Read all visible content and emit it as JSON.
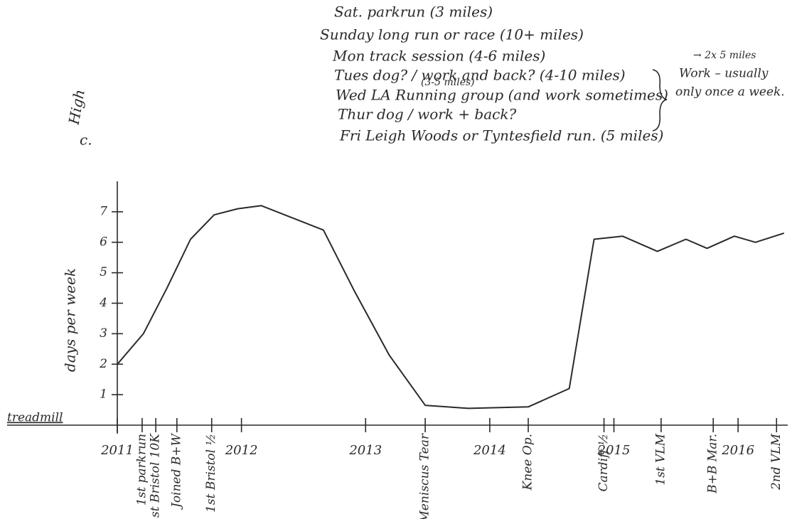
{
  "chart_data": {
    "type": "line",
    "y_label": "days per week",
    "y_annotation": [
      "High",
      "c."
    ],
    "baseline_label": "treadmill",
    "color": "#2a2a2a",
    "x": [
      2011.0,
      2011.21,
      2011.4,
      2011.59,
      2011.78,
      2011.97,
      2012.16,
      2012.41,
      2012.66,
      2012.91,
      2013.19,
      2013.48,
      2013.83,
      2014.31,
      2014.64,
      2014.84,
      2015.07,
      2015.35,
      2015.58,
      2015.75,
      2015.97,
      2016.14,
      2016.37
    ],
    "values": [
      2.0,
      3.0,
      4.5,
      6.1,
      6.9,
      7.1,
      7.2,
      6.8,
      6.4,
      4.4,
      2.3,
      0.65,
      0.55,
      0.6,
      1.2,
      6.1,
      6.2,
      5.7,
      6.1,
      5.8,
      6.2,
      6.0,
      6.3
    ],
    "xlim": [
      2011,
      2016.4
    ],
    "xticks": [
      2011,
      2012,
      2013,
      2014,
      2015,
      2016
    ],
    "ylim": [
      0,
      8
    ],
    "yticks": [
      1,
      2,
      3,
      4,
      5,
      6,
      7
    ],
    "events": [
      {
        "x": 2011.2,
        "label": "1st parkrun"
      },
      {
        "x": 2011.31,
        "label": "1st Bristol 10K"
      },
      {
        "x": 2011.48,
        "label": "Joined B+W"
      },
      {
        "x": 2011.76,
        "label": "1st Bristol ½"
      },
      {
        "x": 2013.48,
        "label": "Meniscus Tear"
      },
      {
        "x": 2014.31,
        "label": "Knee Op."
      },
      {
        "x": 2014.92,
        "label": "Cardiff ½"
      },
      {
        "x": 2015.38,
        "label": "1st VLM"
      },
      {
        "x": 2015.8,
        "label": "B+B Mar."
      },
      {
        "x": 2016.31,
        "label": "2nd VLM"
      }
    ]
  },
  "notes": {
    "schedule": [
      "Sat. parkrun (3 miles)",
      "Sunday long run or race (10+ miles)",
      "Mon track session (4-6 miles)",
      "Tues dog? / work and back? (4-10 miles)",
      "Wed LA Running group (and work sometimes)",
      "Thur dog / work + back?",
      "Fri Leigh Woods or Tyntesfield run. (5 miles)"
    ],
    "wed_distance": "(3-5 miles)",
    "bracket_note": [
      "Work – usually",
      "only once a week."
    ],
    "bracket_arrow_note": "→ 2x 5 miles"
  }
}
